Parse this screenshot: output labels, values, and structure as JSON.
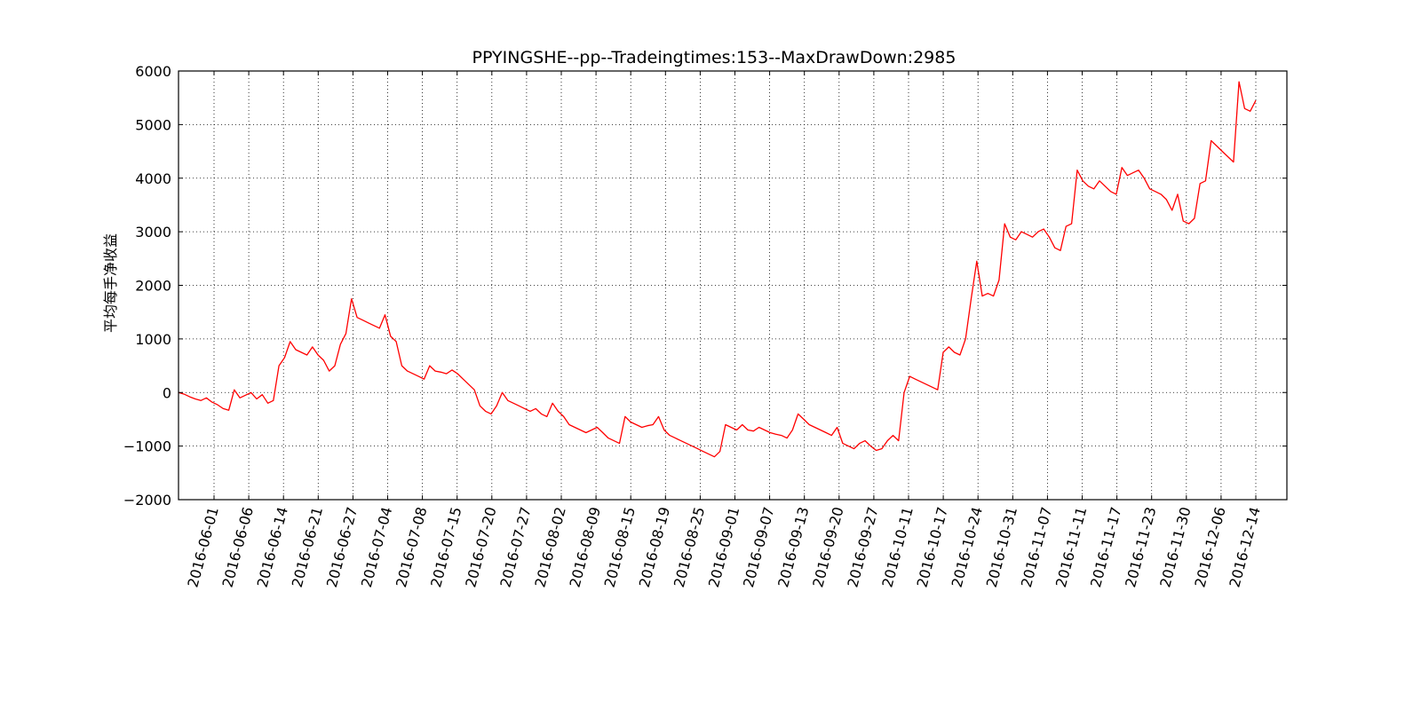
{
  "chart_data": {
    "type": "line",
    "title": "PPYINGSHE--pp--Tradeingtimes:153--MaxDrawDown:2985",
    "xlabel": "",
    "ylabel": "平均每手净收益",
    "ylim": [
      -2000,
      6000
    ],
    "yticks": [
      -2000,
      -1000,
      0,
      1000,
      2000,
      3000,
      4000,
      5000,
      6000
    ],
    "ytick_labels": [
      "−2000",
      "−1000",
      "0",
      "1000",
      "2000",
      "3000",
      "4000",
      "5000",
      "6000"
    ],
    "xtick_labels": [
      "2016-06-01",
      "2016-06-06",
      "2016-06-14",
      "2016-06-21",
      "2016-06-27",
      "2016-07-04",
      "2016-07-08",
      "2016-07-15",
      "2016-07-20",
      "2016-07-27",
      "2016-08-02",
      "2016-08-09",
      "2016-08-15",
      "2016-08-19",
      "2016-08-25",
      "2016-09-01",
      "2016-09-07",
      "2016-09-13",
      "2016-09-20",
      "2016-09-27",
      "2016-10-11",
      "2016-10-17",
      "2016-10-24",
      "2016-10-31",
      "2016-11-07",
      "2016-11-11",
      "2016-11-17",
      "2016-11-23",
      "2016-11-30",
      "2016-12-06",
      "2016-12-14"
    ],
    "grid": true,
    "line_color": "#ff0000",
    "series": [
      {
        "x_from": "2016-06-01",
        "x_to": "2016-12-14",
        "values": [
          0,
          -30,
          -80,
          -120,
          -150,
          -100,
          -180,
          -230,
          -300,
          -330,
          50,
          -100,
          -50,
          0,
          -120,
          -40,
          -200,
          -150,
          500,
          650,
          950,
          800,
          750,
          700,
          850,
          700,
          600,
          400,
          500,
          900,
          1100,
          1750,
          1400,
          1350,
          1300,
          1250,
          1200,
          1450,
          1050,
          950,
          500,
          400,
          350,
          300,
          250,
          500,
          400,
          380,
          350,
          420,
          350,
          250,
          150,
          50,
          -250,
          -350,
          -400,
          -250,
          0,
          -150,
          -200,
          -250,
          -300,
          -350,
          -300,
          -400,
          -450,
          -200,
          -350,
          -450,
          -600,
          -650,
          -700,
          -750,
          -700,
          -650,
          -750,
          -850,
          -900,
          -950,
          -450,
          -550,
          -600,
          -650,
          -620,
          -600,
          -450,
          -700,
          -800,
          -850,
          -900,
          -950,
          -1000,
          -1050,
          -1100,
          -1150,
          -1200,
          -1100,
          -600,
          -650,
          -700,
          -600,
          -700,
          -720,
          -650,
          -700,
          -750,
          -780,
          -800,
          -850,
          -700,
          -400,
          -500,
          -600,
          -650,
          -700,
          -750,
          -800,
          -650,
          -950,
          -1000,
          -1050,
          -950,
          -900,
          -1000,
          -1080,
          -1050,
          -900,
          -800,
          -900,
          0,
          300,
          250,
          200,
          150,
          100,
          50,
          750,
          850,
          750,
          700,
          1000,
          1750,
          2450,
          1800,
          1850,
          1800,
          2100,
          3150,
          2900,
          2850,
          3000,
          2950,
          2900,
          3000,
          3050,
          2900,
          2700,
          2650,
          3100,
          3150,
          4150,
          3950,
          3850,
          3800,
          3950,
          3850,
          3750,
          3700,
          4200,
          4050,
          4100,
          4150,
          4000,
          3800,
          3750,
          3700,
          3600,
          3400,
          3700,
          3200,
          3150,
          3250,
          3900,
          3950,
          4700,
          4600,
          4500,
          4400,
          4300,
          5800,
          5300,
          5250,
          5450
        ]
      }
    ]
  }
}
